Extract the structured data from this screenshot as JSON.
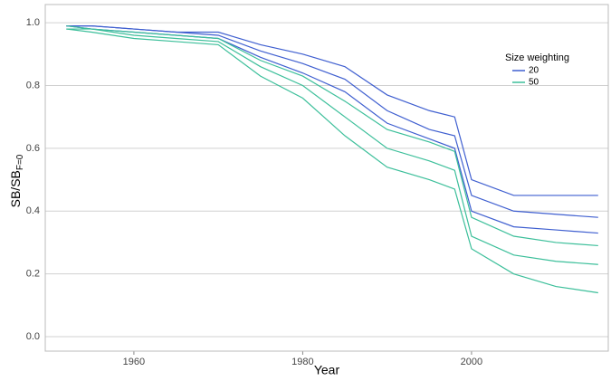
{
  "chart_data": {
    "type": "line",
    "x_label": "Year",
    "y_label": "SB/SB",
    "y_label_sub": "F=0",
    "legend_title": "Size weighting",
    "legend_position": "top-right",
    "x": [
      1952,
      1955,
      1960,
      1965,
      1970,
      1975,
      1980,
      1985,
      1990,
      1995,
      1998,
      2000,
      2005,
      2010,
      2015
    ],
    "series": [
      {
        "name": "20",
        "color": "#3f5fd0",
        "values": [
          0.99,
          0.99,
          0.98,
          0.97,
          0.97,
          0.93,
          0.9,
          0.86,
          0.77,
          0.72,
          0.7,
          0.5,
          0.45,
          0.45,
          0.45
        ]
      },
      {
        "name": "20",
        "color": "#3f5fd0",
        "values": [
          0.99,
          0.99,
          0.98,
          0.97,
          0.96,
          0.91,
          0.87,
          0.82,
          0.72,
          0.66,
          0.64,
          0.45,
          0.4,
          0.39,
          0.38
        ]
      },
      {
        "name": "20",
        "color": "#3f5fd0",
        "values": [
          0.99,
          0.98,
          0.97,
          0.96,
          0.95,
          0.89,
          0.84,
          0.78,
          0.68,
          0.63,
          0.6,
          0.4,
          0.35,
          0.34,
          0.33
        ]
      },
      {
        "name": "50",
        "color": "#3cbf9a",
        "values": [
          0.99,
          0.98,
          0.97,
          0.96,
          0.95,
          0.88,
          0.83,
          0.75,
          0.66,
          0.62,
          0.59,
          0.38,
          0.32,
          0.3,
          0.29
        ]
      },
      {
        "name": "50",
        "color": "#3cbf9a",
        "values": [
          0.98,
          0.98,
          0.96,
          0.95,
          0.94,
          0.86,
          0.8,
          0.7,
          0.6,
          0.56,
          0.53,
          0.32,
          0.26,
          0.24,
          0.23
        ]
      },
      {
        "name": "50",
        "color": "#3cbf9a",
        "values": [
          0.98,
          0.97,
          0.95,
          0.94,
          0.93,
          0.83,
          0.76,
          0.64,
          0.54,
          0.5,
          0.47,
          0.28,
          0.2,
          0.16,
          0.14
        ]
      }
    ],
    "xlim": [
      1949.5,
      2016.2
    ],
    "xticks": [
      1960,
      1980,
      2000
    ],
    "ylim": [
      -0.046,
      1.058
    ],
    "yticks": [
      {
        "value": 0,
        "label": "0.0"
      },
      0.2,
      0.4,
      0.6,
      0.8,
      {
        "value": 1,
        "label": "1.0"
      }
    ],
    "grid": true
  }
}
